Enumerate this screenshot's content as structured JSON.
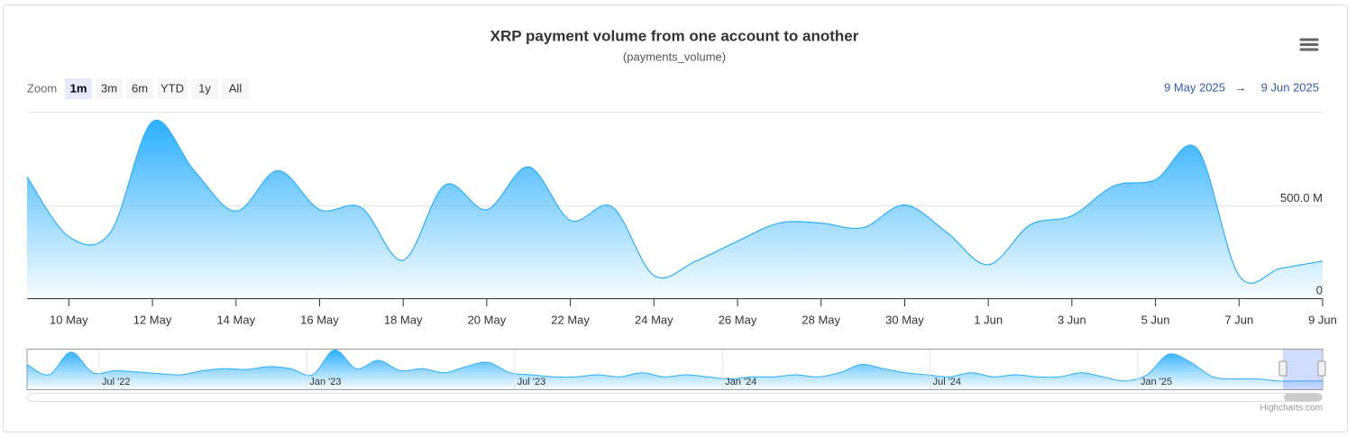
{
  "chart_data": {
    "type": "area",
    "title": "XRP payment volume from one account to another",
    "subtitle": "(payments_volume)",
    "zoom_label": "Zoom",
    "zoom_buttons": [
      "1m",
      "3m",
      "6m",
      "YTD",
      "1y",
      "All"
    ],
    "active_zoom": "1m",
    "range_from": "9 May 2025",
    "range_arrow": "→",
    "range_to": "9 Jun 2025",
    "categories": [
      null,
      "10 May",
      null,
      "12 May",
      null,
      "14 May",
      null,
      "16 May",
      null,
      "18 May",
      null,
      "20 May",
      null,
      "22 May",
      null,
      "24 May",
      null,
      "26 May",
      null,
      "28 May",
      null,
      "30 May",
      null,
      "1 Jun",
      null,
      "3 Jun",
      null,
      "5 Jun",
      null,
      "7 Jun",
      null,
      "9 Jun"
    ],
    "values": [
      657,
      333,
      358,
      956,
      691,
      471,
      691,
      480,
      490,
      206,
      613,
      480,
      711,
      422,
      495,
      123,
      201,
      309,
      407,
      407,
      382,
      505,
      358,
      181,
      397,
      446,
      608,
      642,
      809,
      123,
      162,
      201
    ],
    "color": "#2caffe",
    "ylim": [
      0,
      1010
    ],
    "yticks": [
      0,
      {
        "value": 500,
        "label": "500.0 M"
      }
    ],
    "grid": true,
    "navigator": {
      "labels": [
        "Jul '22",
        "Jan '23",
        "Jul '23",
        "Jan '24",
        "Jul '24",
        "Jan '25"
      ],
      "values": [
        600,
        350,
        900,
        400,
        450,
        420,
        380,
        350,
        450,
        500,
        480,
        550,
        500,
        350,
        950,
        500,
        700,
        450,
        500,
        400,
        550,
        650,
        400,
        350,
        300,
        300,
        350,
        300,
        400,
        300,
        350,
        300,
        250,
        300,
        300,
        350,
        300,
        400,
        600,
        500,
        400,
        350,
        300,
        400,
        300,
        350,
        300,
        300,
        400,
        300,
        200,
        350,
        850,
        650,
        300,
        250,
        250,
        200,
        200,
        200
      ]
    },
    "credits": "Highcharts.com"
  }
}
